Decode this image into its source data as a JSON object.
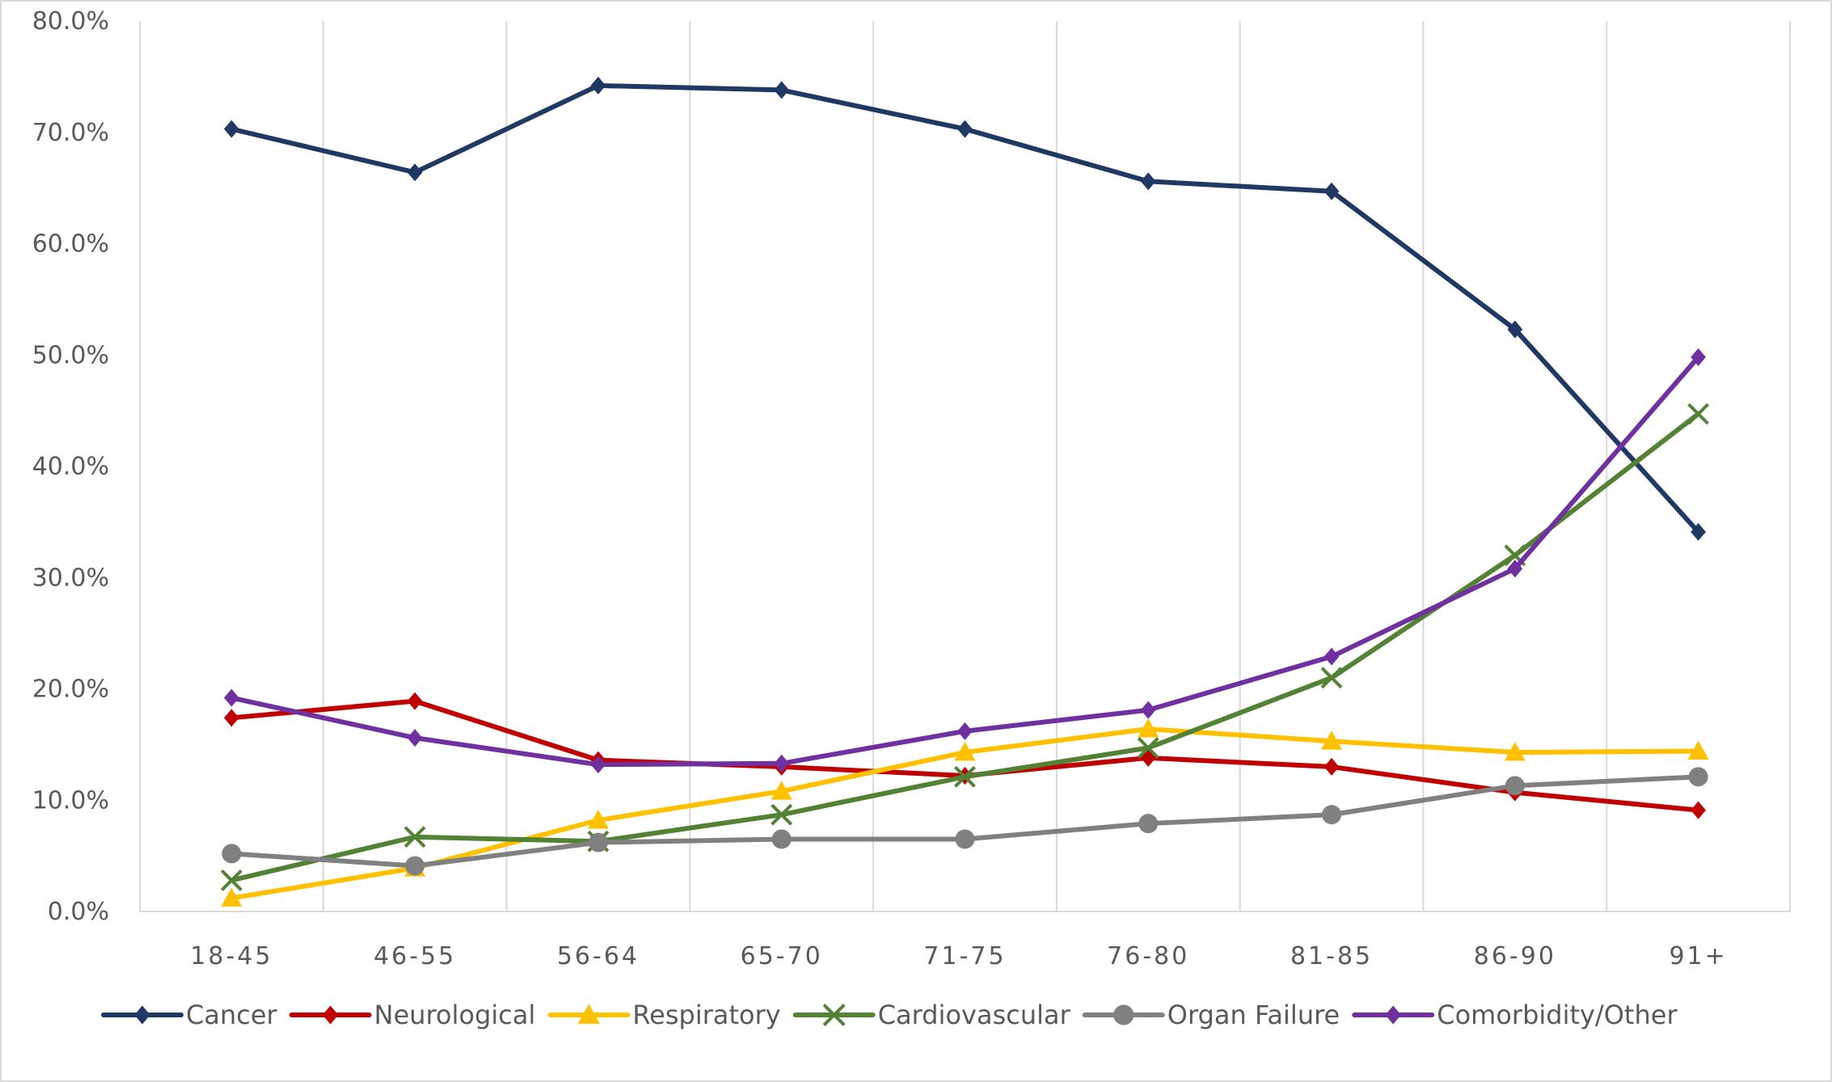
{
  "chart_data": {
    "type": "line",
    "title": "",
    "xlabel": "",
    "ylabel": "",
    "ylim": [
      0,
      80
    ],
    "y_tick_format": "percent_one_decimal",
    "y_ticks": [
      "0.0%",
      "10.0%",
      "20.0%",
      "30.0%",
      "40.0%",
      "50.0%",
      "60.0%",
      "70.0%",
      "80.0%"
    ],
    "grid": "vertical",
    "legend_position": "bottom",
    "categories": [
      "18-45",
      "46-55",
      "56-64",
      "65-70",
      "71-75",
      "76-80",
      "81-85",
      "86-90",
      "91+"
    ],
    "series": [
      {
        "name": "Cancer",
        "color": "#1F3864",
        "marker": "diamond",
        "values": [
          70.3,
          66.4,
          74.2,
          73.8,
          70.3,
          65.6,
          64.7,
          52.3,
          34.1
        ]
      },
      {
        "name": "Neurological",
        "color": "#C00000",
        "marker": "diamond",
        "values": [
          17.4,
          18.9,
          13.6,
          13.0,
          12.2,
          13.8,
          13.0,
          10.7,
          9.1
        ]
      },
      {
        "name": "Respiratory",
        "color": "#FFC000",
        "marker": "triangle",
        "values": [
          1.2,
          3.9,
          8.2,
          10.8,
          14.3,
          16.4,
          15.3,
          14.3,
          14.4
        ]
      },
      {
        "name": "Cardiovascular",
        "color": "#548235",
        "marker": "x",
        "values": [
          2.8,
          6.7,
          6.3,
          8.7,
          12.1,
          14.7,
          21.0,
          32.0,
          44.7
        ]
      },
      {
        "name": "Organ Failure",
        "color": "#808080",
        "marker": "circle",
        "values": [
          5.2,
          4.1,
          6.2,
          6.5,
          6.5,
          7.9,
          8.7,
          11.3,
          12.1
        ]
      },
      {
        "name": "Comorbidity/Other",
        "color": "#7030A0",
        "marker": "diamond",
        "values": [
          19.2,
          15.6,
          13.2,
          13.3,
          16.2,
          18.1,
          22.9,
          30.8,
          49.8
        ]
      }
    ]
  }
}
